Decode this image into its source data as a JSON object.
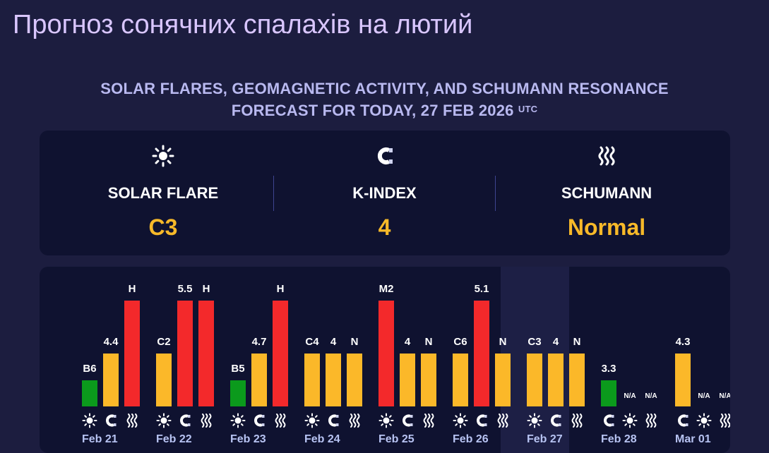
{
  "page_title": "Прогноз сонячних спалахів на лютий",
  "subtitle": {
    "line1": "SOLAR FLARES, GEOMAGNETIC ACTIVITY, AND SCHUMANN RESONANCE",
    "line2": "FORECAST FOR TODAY, 27 FEB 2026",
    "tz": "UTC"
  },
  "summary": [
    {
      "label": "SOLAR FLARE",
      "value": "C3",
      "icon": "sun-icon"
    },
    {
      "label": "K-INDEX",
      "value": "4",
      "icon": "magnet-icon"
    },
    {
      "label": "SCHUMANN",
      "value": "Normal",
      "icon": "waves-icon"
    }
  ],
  "colors": {
    "green": "#0b9a1c",
    "yellow": "#fbb829",
    "red": "#f3292b",
    "label": "#b7c3f2",
    "accent": "#f7b929"
  },
  "chart_data": {
    "type": "bar",
    "metrics": [
      "solar_flare",
      "k_index",
      "schumann"
    ],
    "days": [
      {
        "date": "",
        "bars": [
          {
            "metric": "schumann",
            "label": "H",
            "level": "high"
          }
        ]
      },
      {
        "date": "Feb 21",
        "bars": [
          {
            "metric": "solar_flare",
            "label": "B6",
            "level": "low"
          },
          {
            "metric": "k_index",
            "label": "4.4",
            "level": "medium"
          },
          {
            "metric": "schumann",
            "label": "H",
            "level": "high"
          }
        ]
      },
      {
        "date": "Feb 22",
        "bars": [
          {
            "metric": "solar_flare",
            "label": "C2",
            "level": "medium"
          },
          {
            "metric": "k_index",
            "label": "5.5",
            "level": "high"
          },
          {
            "metric": "schumann",
            "label": "H",
            "level": "high"
          }
        ]
      },
      {
        "date": "Feb 23",
        "bars": [
          {
            "metric": "solar_flare",
            "label": "B5",
            "level": "low"
          },
          {
            "metric": "k_index",
            "label": "4.7",
            "level": "medium"
          },
          {
            "metric": "schumann",
            "label": "H",
            "level": "high"
          }
        ]
      },
      {
        "date": "Feb 24",
        "bars": [
          {
            "metric": "solar_flare",
            "label": "C4",
            "level": "medium"
          },
          {
            "metric": "k_index",
            "label": "4",
            "level": "medium"
          },
          {
            "metric": "schumann",
            "label": "N",
            "level": "medium"
          }
        ]
      },
      {
        "date": "Feb 25",
        "bars": [
          {
            "metric": "solar_flare",
            "label": "M2",
            "level": "high"
          },
          {
            "metric": "k_index",
            "label": "4",
            "level": "medium"
          },
          {
            "metric": "schumann",
            "label": "N",
            "level": "medium"
          }
        ]
      },
      {
        "date": "Feb 26",
        "bars": [
          {
            "metric": "solar_flare",
            "label": "C6",
            "level": "medium"
          },
          {
            "metric": "k_index",
            "label": "5.1",
            "level": "high"
          },
          {
            "metric": "schumann",
            "label": "N",
            "level": "medium"
          }
        ]
      },
      {
        "date": "Feb 27",
        "today": true,
        "bars": [
          {
            "metric": "solar_flare",
            "label": "C3",
            "level": "medium"
          },
          {
            "metric": "k_index",
            "label": "4",
            "level": "medium"
          },
          {
            "metric": "schumann",
            "label": "N",
            "level": "medium"
          }
        ]
      },
      {
        "date": "Feb 28",
        "bars": [
          {
            "metric": "k_index",
            "label": "3.3",
            "level": "low"
          },
          {
            "metric": "solar_flare",
            "label": "N/A",
            "level": "none"
          },
          {
            "metric": "schumann",
            "label": "N/A",
            "level": "none"
          }
        ]
      },
      {
        "date": "Mar 01",
        "bars": [
          {
            "metric": "k_index",
            "label": "4.3",
            "level": "medium"
          },
          {
            "metric": "solar_flare",
            "label": "N/A",
            "level": "none"
          },
          {
            "metric": "schumann",
            "label": "N/A",
            "level": "none"
          }
        ]
      }
    ]
  }
}
